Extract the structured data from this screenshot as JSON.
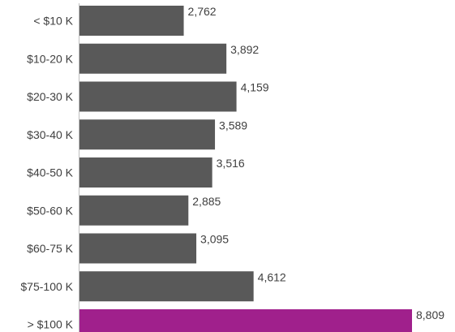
{
  "chart_data": {
    "type": "bar",
    "orientation": "horizontal",
    "title": "",
    "xlabel": "",
    "ylabel": "",
    "categories": [
      "< $10 K",
      "$10-20 K",
      "$20-30 K",
      "$30-40 K",
      "$40-50 K",
      "$50-60 K",
      "$60-75 K",
      "$75-100 K",
      "> $100 K"
    ],
    "values": [
      2762,
      3892,
      4159,
      3589,
      3516,
      2885,
      3095,
      4612,
      8809
    ],
    "value_labels": [
      "2,762",
      "3,892",
      "4,159",
      "3,589",
      "3,516",
      "2,885",
      "3,095",
      "4,612",
      "8,809"
    ],
    "xlim": [
      0,
      8809
    ],
    "grid": false,
    "legend": "none",
    "colors": {
      "default_bar": "#595959",
      "highlight_bar": "#a0208c",
      "highlight_index": 8
    }
  }
}
